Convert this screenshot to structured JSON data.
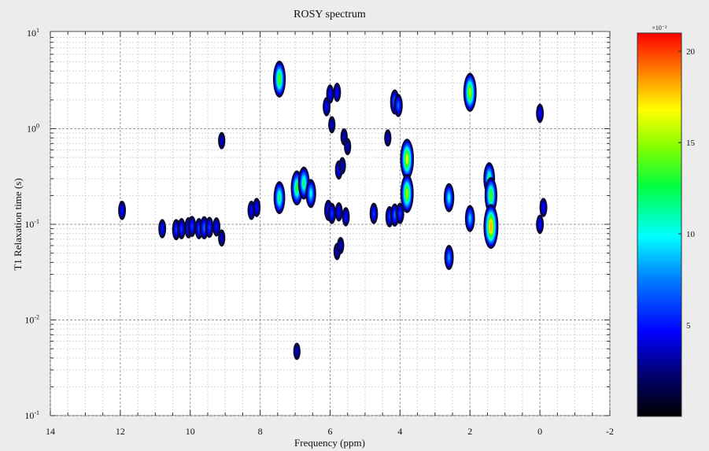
{
  "colors": {
    "background": "#ececec",
    "plot_bg": "#ffffff",
    "contour_edge": "#0a0a3a"
  },
  "chart_data": {
    "type": "heatmap",
    "title": "ROSY spectrum",
    "xlabel": "Frequency (ppm)",
    "ylabel": "T1 Relaxation time (s)",
    "xlim": [
      14,
      -2
    ],
    "ylim": [
      0.1,
      10
    ],
    "yscale": "log",
    "grid": true,
    "x_ticks": [
      "14",
      "12",
      "10",
      "8",
      "6",
      "4",
      "2",
      "0",
      "-2"
    ],
    "y_ticks": [
      {
        "base": "10",
        "exp": "1"
      },
      {
        "base": "10",
        "exp": "0"
      },
      {
        "base": "10",
        "exp": "-1"
      },
      {
        "base": "10",
        "exp": "-2"
      },
      {
        "base": "10",
        "exp": "-1"
      }
    ],
    "colorbar": {
      "multiplier": "×10⁻²",
      "ticks": [
        "20",
        "15",
        "10",
        "5"
      ],
      "range": [
        0,
        21
      ],
      "colormap": "jet"
    },
    "peaks": [
      {
        "x": 11.95,
        "y": 0.14,
        "i": 5
      },
      {
        "x": 10.8,
        "y": 0.09,
        "i": 5
      },
      {
        "x": 10.4,
        "y": 0.088,
        "i": 6
      },
      {
        "x": 10.25,
        "y": 0.09,
        "i": 6
      },
      {
        "x": 10.05,
        "y": 0.092,
        "i": 6
      },
      {
        "x": 9.95,
        "y": 0.095,
        "i": 6
      },
      {
        "x": 9.75,
        "y": 0.09,
        "i": 6
      },
      {
        "x": 9.6,
        "y": 0.092,
        "i": 7
      },
      {
        "x": 9.45,
        "y": 0.093,
        "i": 6
      },
      {
        "x": 9.25,
        "y": 0.094,
        "i": 5
      },
      {
        "x": 9.1,
        "y": 0.75,
        "i": 4
      },
      {
        "x": 9.1,
        "y": 0.072,
        "i": 4
      },
      {
        "x": 8.25,
        "y": 0.14,
        "i": 5
      },
      {
        "x": 8.1,
        "y": 0.15,
        "i": 5
      },
      {
        "x": 7.45,
        "y": 3.3,
        "i": 14
      },
      {
        "x": 7.45,
        "y": 0.19,
        "i": 12
      },
      {
        "x": 6.95,
        "y": 0.24,
        "i": 13
      },
      {
        "x": 6.75,
        "y": 0.27,
        "i": 12
      },
      {
        "x": 6.55,
        "y": 0.21,
        "i": 10
      },
      {
        "x": 6.95,
        "y": 0.0047,
        "i": 4
      },
      {
        "x": 6.1,
        "y": 1.7,
        "i": 5
      },
      {
        "x": 6.0,
        "y": 2.3,
        "i": 5
      },
      {
        "x": 5.95,
        "y": 1.1,
        "i": 4
      },
      {
        "x": 5.8,
        "y": 2.4,
        "i": 5
      },
      {
        "x": 5.6,
        "y": 0.82,
        "i": 4
      },
      {
        "x": 5.5,
        "y": 0.65,
        "i": 4
      },
      {
        "x": 5.75,
        "y": 0.37,
        "i": 5
      },
      {
        "x": 5.65,
        "y": 0.41,
        "i": 4
      },
      {
        "x": 6.05,
        "y": 0.14,
        "i": 6
      },
      {
        "x": 5.95,
        "y": 0.13,
        "i": 6
      },
      {
        "x": 5.75,
        "y": 0.135,
        "i": 5
      },
      {
        "x": 5.55,
        "y": 0.12,
        "i": 5
      },
      {
        "x": 5.8,
        "y": 0.052,
        "i": 4
      },
      {
        "x": 5.7,
        "y": 0.06,
        "i": 4
      },
      {
        "x": 4.75,
        "y": 0.13,
        "i": 6
      },
      {
        "x": 4.35,
        "y": 0.8,
        "i": 4
      },
      {
        "x": 4.3,
        "y": 0.12,
        "i": 6
      },
      {
        "x": 4.15,
        "y": 1.9,
        "i": 8
      },
      {
        "x": 4.05,
        "y": 1.75,
        "i": 7
      },
      {
        "x": 4.15,
        "y": 0.125,
        "i": 7
      },
      {
        "x": 4.0,
        "y": 0.13,
        "i": 6
      },
      {
        "x": 3.8,
        "y": 0.48,
        "i": 16
      },
      {
        "x": 3.8,
        "y": 0.21,
        "i": 15
      },
      {
        "x": 2.6,
        "y": 0.19,
        "i": 10
      },
      {
        "x": 2.6,
        "y": 0.045,
        "i": 8
      },
      {
        "x": 2.0,
        "y": 2.4,
        "i": 15
      },
      {
        "x": 2.0,
        "y": 0.115,
        "i": 9
      },
      {
        "x": 1.45,
        "y": 0.3,
        "i": 12
      },
      {
        "x": 1.4,
        "y": 0.2,
        "i": 14
      },
      {
        "x": 1.4,
        "y": 0.095,
        "i": 18
      },
      {
        "x": 0.0,
        "y": 1.45,
        "i": 5
      },
      {
        "x": 0.0,
        "y": 0.1,
        "i": 5
      },
      {
        "x": -0.1,
        "y": 0.15,
        "i": 5
      }
    ]
  }
}
